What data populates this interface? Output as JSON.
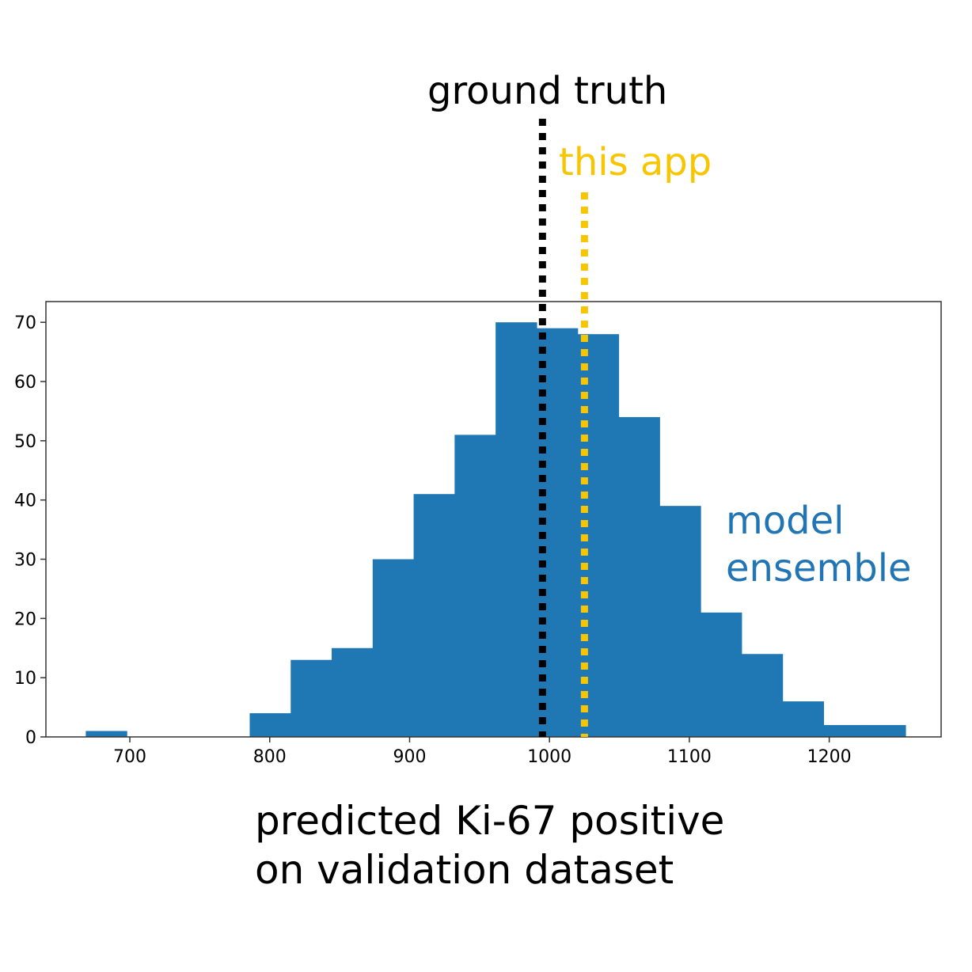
{
  "chart_data": {
    "type": "bar",
    "bin_width": 29.3,
    "bins": [
      {
        "start": 668.5,
        "value": 1
      },
      {
        "start": 697.8,
        "value": 0
      },
      {
        "start": 727.1,
        "value": 0
      },
      {
        "start": 756.4,
        "value": 0
      },
      {
        "start": 785.7,
        "value": 4
      },
      {
        "start": 815.0,
        "value": 13
      },
      {
        "start": 844.3,
        "value": 15
      },
      {
        "start": 873.6,
        "value": 30
      },
      {
        "start": 902.9,
        "value": 41
      },
      {
        "start": 932.2,
        "value": 51
      },
      {
        "start": 961.5,
        "value": 70
      },
      {
        "start": 990.8,
        "value": 69
      },
      {
        "start": 1020.1,
        "value": 68
      },
      {
        "start": 1049.4,
        "value": 54
      },
      {
        "start": 1078.7,
        "value": 39
      },
      {
        "start": 1108.0,
        "value": 21
      },
      {
        "start": 1137.3,
        "value": 14
      },
      {
        "start": 1166.6,
        "value": 6
      },
      {
        "start": 1195.9,
        "value": 2
      },
      {
        "start": 1225.2,
        "value": 2
      }
    ],
    "xlim": [
      640,
      1280
    ],
    "ylim": [
      0,
      73.5
    ],
    "xticks": [
      700,
      800,
      900,
      1000,
      1100,
      1200
    ],
    "yticks": [
      0,
      10,
      20,
      30,
      40,
      50,
      60,
      70
    ],
    "xlabel_lines": [
      "predicted Ki-67 positive",
      "on validation dataset"
    ],
    "bar_color": "#1f77b4",
    "vlines": [
      {
        "label": "ground truth",
        "x": 995,
        "color": "#000000"
      },
      {
        "label": "this app",
        "x": 1025,
        "color": "#f7c600"
      }
    ],
    "annotations": [
      {
        "lines": [
          "model",
          "ensemble"
        ],
        "color": "#2275b4"
      }
    ],
    "grid": false
  }
}
